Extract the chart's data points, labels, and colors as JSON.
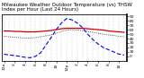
{
  "title": "Milwaukee Weather Outdoor Temperature (vs) THSW Index per Hour (Last 24 Hours)",
  "title2": "(Last 24 Hours)",
  "hours": [
    0,
    1,
    2,
    3,
    4,
    5,
    6,
    7,
    8,
    9,
    10,
    11,
    12,
    13,
    14,
    15,
    16,
    17,
    18,
    19,
    20,
    21,
    22,
    23
  ],
  "temp": [
    57,
    57,
    56,
    56,
    55,
    55,
    55,
    56,
    57,
    58,
    60,
    62,
    63,
    63,
    63,
    63,
    62,
    61,
    60,
    59,
    57,
    56,
    55,
    54
  ],
  "thsw": [
    5,
    3,
    2,
    0,
    -2,
    -3,
    0,
    8,
    25,
    42,
    60,
    75,
    85,
    82,
    75,
    65,
    50,
    38,
    28,
    20,
    15,
    10,
    5,
    3
  ],
  "feel": [
    45,
    44,
    43,
    42,
    41,
    41,
    42,
    44,
    46,
    48,
    52,
    56,
    59,
    60,
    59,
    58,
    56,
    54,
    52,
    50,
    48,
    47,
    45,
    44
  ],
  "temp_color": "#cc0000",
  "thsw_color": "#0000dd",
  "feel_color": "#222222",
  "bg_color": "#ffffff",
  "grid_color": "#888888",
  "ylim": [
    -10,
    95
  ],
  "yticks_right": [
    0,
    10,
    20,
    30,
    40,
    50,
    60,
    70,
    80,
    90
  ],
  "title_fontsize": 4.0,
  "tick_fontsize": 3.2,
  "linewidth_temp": 0.9,
  "linewidth_thsw": 0.8,
  "linewidth_feel": 0.6
}
